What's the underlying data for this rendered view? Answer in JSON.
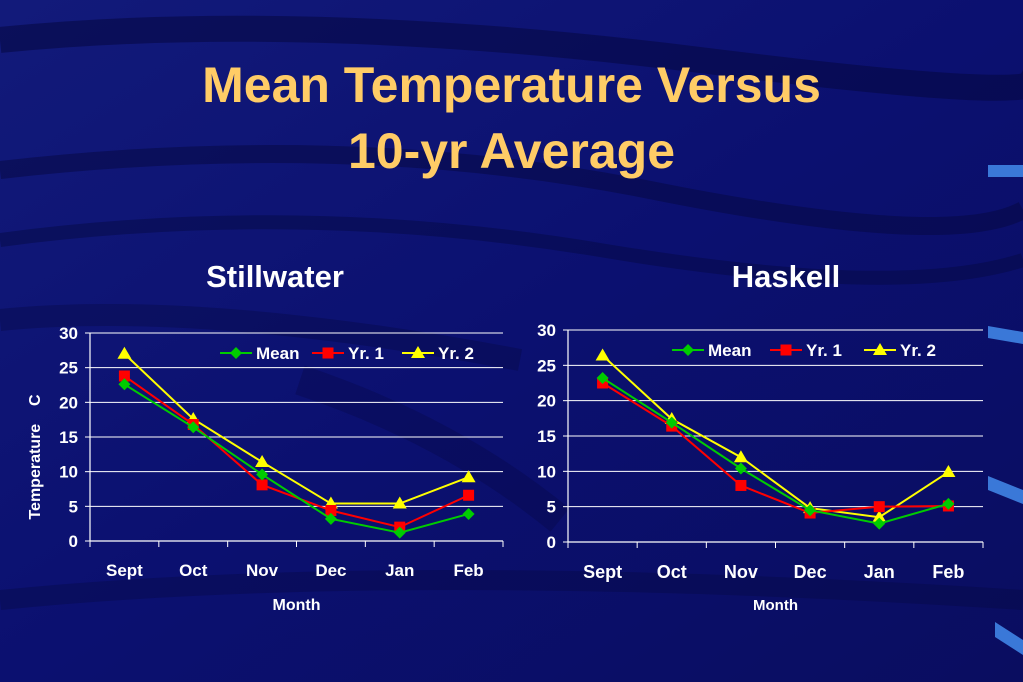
{
  "slide": {
    "title_line1": "Mean Temperature Versus",
    "title_line2": "10-yr Average"
  },
  "colors": {
    "background": "#0a0f6e",
    "title": "#ffcc66",
    "mean": "#00cc00",
    "yr1": "#ff0000",
    "yr2": "#ffff00",
    "text": "#ffffff"
  },
  "chart_data": [
    {
      "type": "line",
      "title": "Stillwater",
      "xlabel": "Month",
      "ylabel": "Temperature    C",
      "categories": [
        "Sept",
        "Oct",
        "Nov",
        "Dec",
        "Jan",
        "Feb"
      ],
      "ylim": [
        0,
        30
      ],
      "yticks": [
        "0",
        "5",
        "10",
        "15",
        "20",
        "25",
        "30"
      ],
      "grid": true,
      "legend": "top-right",
      "series": [
        {
          "name": "Mean",
          "marker": "diamond",
          "values": [
            22.6,
            16.4,
            9.6,
            3.2,
            1.2,
            3.9
          ]
        },
        {
          "name": "Yr. 1",
          "marker": "square",
          "values": [
            23.8,
            16.8,
            8.1,
            4.4,
            2.0,
            6.6
          ]
        },
        {
          "name": "Yr. 2",
          "marker": "triangle",
          "values": [
            27.0,
            17.6,
            11.4,
            5.4,
            5.4,
            9.2
          ]
        }
      ]
    },
    {
      "type": "line",
      "title": "Haskell",
      "xlabel": "Month",
      "ylabel": "",
      "categories": [
        "Sept",
        "Oct",
        "Nov",
        "Dec",
        "Jan",
        "Feb"
      ],
      "ylim": [
        0,
        30
      ],
      "yticks": [
        "0",
        "5",
        "10",
        "15",
        "20",
        "25",
        "30"
      ],
      "grid": true,
      "legend": "top-right",
      "series": [
        {
          "name": "Mean",
          "marker": "diamond",
          "values": [
            23.2,
            16.9,
            10.4,
            4.5,
            2.6,
            5.4
          ]
        },
        {
          "name": "Yr. 1",
          "marker": "square",
          "values": [
            22.5,
            16.4,
            8.0,
            4.1,
            5.0,
            5.1
          ]
        },
        {
          "name": "Yr. 2",
          "marker": "triangle",
          "values": [
            26.4,
            17.4,
            12.0,
            4.8,
            3.5,
            9.9
          ]
        }
      ]
    }
  ]
}
